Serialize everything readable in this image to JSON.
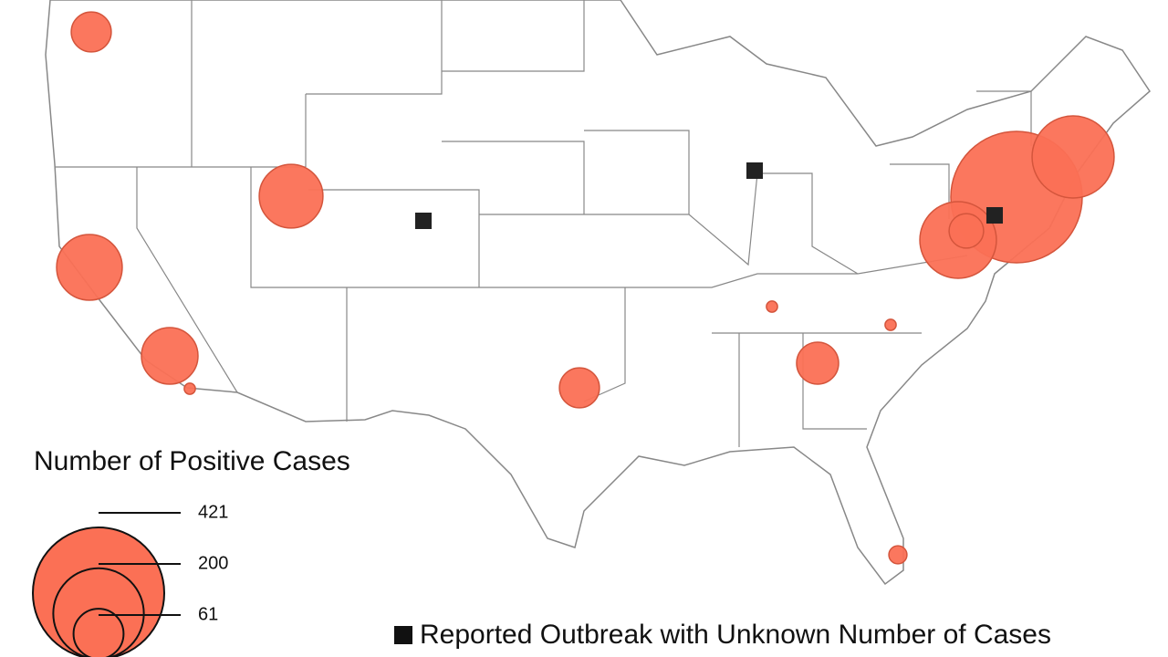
{
  "map": {
    "legend_title": "Number of Positive Cases",
    "legend_sizes": [
      421,
      200,
      61
    ],
    "outbreak_label": "Reported Outbreak with Unknown Number of Cases",
    "bubbles": [
      {
        "value": 39
      },
      {
        "value": 99
      },
      {
        "value": 105
      },
      {
        "value": 78
      },
      {
        "value": 3
      },
      {
        "value": 39
      },
      {
        "value": 3
      },
      {
        "value": 3
      },
      {
        "value": 43
      },
      {
        "value": 8
      },
      {
        "value": 421
      },
      {
        "value": 164
      },
      {
        "value": 143
      },
      {
        "value": 29
      }
    ]
  }
}
